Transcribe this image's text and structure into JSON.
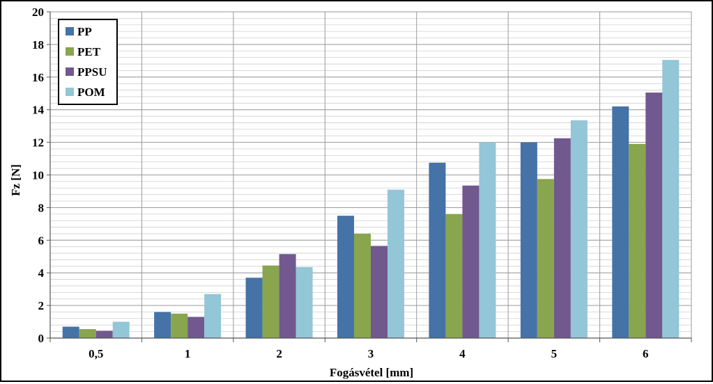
{
  "chart_data": {
    "type": "bar",
    "title": "",
    "xlabel": "Fogásvétel [mm]",
    "ylabel": "Fz [N]",
    "ylim": [
      0,
      20
    ],
    "yticks": [
      0,
      2,
      4,
      6,
      8,
      10,
      12,
      14,
      16,
      18,
      20
    ],
    "minor_grid_step": 0.4,
    "grid": true,
    "legend_position": "top-left",
    "categories": [
      "0,5",
      "1",
      "2",
      "3",
      "4",
      "5",
      "6"
    ],
    "series": [
      {
        "name": "PP",
        "color": "#4572A7",
        "values": [
          0.7,
          1.6,
          3.7,
          7.5,
          10.75,
          12.0,
          14.2
        ]
      },
      {
        "name": "PET",
        "color": "#89A54E",
        "values": [
          0.55,
          1.5,
          4.45,
          6.4,
          7.6,
          9.75,
          11.9
        ]
      },
      {
        "name": "PPSU",
        "color": "#71588F",
        "values": [
          0.45,
          1.3,
          5.15,
          5.65,
          9.35,
          12.25,
          15.05
        ]
      },
      {
        "name": "POM",
        "color": "#93C6D7",
        "values": [
          1.0,
          2.7,
          4.35,
          9.1,
          12.0,
          13.35,
          17.05
        ]
      }
    ]
  }
}
